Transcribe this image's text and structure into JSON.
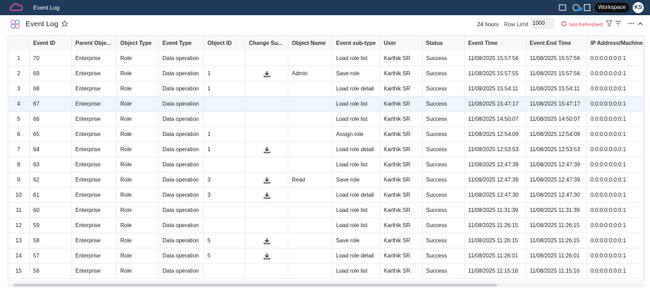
{
  "topbar": {
    "title": "Event Log",
    "workspace": "Workspace",
    "avatar": "KS"
  },
  "toolbar": {
    "title": "Event Log",
    "range": "24 hours",
    "row_limit_label": "Row Limit",
    "row_limit": "1000",
    "refresh_status": "Not Refreshed"
  },
  "table": {
    "columns": [
      "Event ID",
      "Parent Obje...",
      "Object Type",
      "Event Type",
      "Object ID",
      "Change Su...",
      "Object Name",
      "Event sub-type",
      "User",
      "Status",
      "Event Time",
      "Event End Time",
      "IP Address/Machine"
    ],
    "rows": [
      {
        "cells": [
          1,
          70,
          "Enterprise",
          "Role",
          "Data operation",
          null,
          null,
          null,
          "Load role list",
          "Karthik SR",
          "Success",
          "11/08/2025 15:57:56",
          "11/08/2025 15:57:56",
          "0:0:0:0:0:0:0:1"
        ]
      },
      {
        "cells": [
          2,
          69,
          "Enterprise",
          "Role",
          "Data operation",
          1,
          null,
          "Admin",
          "Save role",
          "Karthik SR",
          "Success",
          "11/08/2025 15:57:55",
          "11/08/2025 15:57:56",
          "0:0:0:0:0:0:0:1"
        ],
        "download": true
      },
      {
        "cells": [
          3,
          68,
          "Enterprise",
          "Role",
          "Data operation",
          1,
          null,
          null,
          "Load role detail",
          "Karthik SR",
          "Success",
          "11/08/2025 15:54:11",
          "11/08/2025 15:54:11",
          "0:0:0:0:0:0:0:1"
        ]
      },
      {
        "cells": [
          4,
          67,
          "Enterprise",
          "Role",
          "Data operation",
          null,
          null,
          null,
          "Load role list",
          "Karthik SR",
          "Success",
          "11/08/2025 15:47:17",
          "11/08/2025 15:47:17",
          "0:0:0:0:0:0:0:1"
        ],
        "selected": true
      },
      {
        "cells": [
          5,
          66,
          "Enterprise",
          "Role",
          "Data operation",
          null,
          null,
          null,
          "Load role list",
          "Karthik SR",
          "Success",
          "11/08/2025 14:50:07",
          "11/08/2025 14:50:07",
          "0:0:0:0:0:0:0:1"
        ]
      },
      {
        "cells": [
          6,
          65,
          "Enterprise",
          "Role",
          "Data operation",
          1,
          null,
          null,
          "Assign role",
          "Karthik SR",
          "Success",
          "11/08/2025 12:54:09",
          "11/08/2025 12:54:09",
          "0:0:0:0:0:0:0:1"
        ]
      },
      {
        "cells": [
          7,
          64,
          "Enterprise",
          "Role",
          "Data operation",
          1,
          null,
          null,
          "Load role detail",
          "Karthik SR",
          "Success",
          "11/08/2025 12:53:53",
          "11/08/2025 12:53:53",
          "0:0:0:0:0:0:0:1"
        ],
        "download": true
      },
      {
        "cells": [
          8,
          63,
          "Enterprise",
          "Role",
          "Data operation",
          null,
          null,
          null,
          "Load role list",
          "Karthik SR",
          "Success",
          "11/08/2025 12:47:39",
          "11/08/2025 12:47:39",
          "0:0:0:0:0:0:0:1"
        ]
      },
      {
        "cells": [
          9,
          62,
          "Enterprise",
          "Role",
          "Data operation",
          3,
          null,
          "Read",
          "Save role",
          "Karthik SR",
          "Success",
          "11/08/2025 12:47:39",
          "11/08/2025 12:47:39",
          "0:0:0:0:0:0:0:1"
        ],
        "download": true
      },
      {
        "cells": [
          10,
          61,
          "Enterprise",
          "Role",
          "Data operation",
          3,
          null,
          null,
          "Load role detail",
          "Karthik SR",
          "Success",
          "11/08/2025 12:47:30",
          "11/08/2025 12:47:30",
          "0:0:0:0:0:0:0:1"
        ],
        "download": true
      },
      {
        "cells": [
          11,
          60,
          "Enterprise",
          "Role",
          "Data operation",
          null,
          null,
          null,
          "Load role list",
          "Karthik SR",
          "Success",
          "11/08/2025 11:31:39",
          "11/08/2025 11:31:39",
          "0:0:0:0:0:0:0:1"
        ]
      },
      {
        "cells": [
          12,
          59,
          "Enterprise",
          "Role",
          "Data operation",
          null,
          null,
          null,
          "Load role list",
          "Karthik SR",
          "Success",
          "11/08/2025 11:26:15",
          "11/08/2025 11:26:15",
          "0:0:0:0:0:0:0:1"
        ]
      },
      {
        "cells": [
          13,
          58,
          "Enterprise",
          "Role",
          "Data operation",
          5,
          null,
          null,
          "Save role",
          "Karthik SR",
          "Success",
          "11/08/2025 11:26:15",
          "11/08/2025 11:26:15",
          "0:0:0:0:0:0:0:1"
        ],
        "download": true
      },
      {
        "cells": [
          14,
          57,
          "Enterprise",
          "Role",
          "Data operation",
          5,
          null,
          null,
          "Load role detail",
          "Karthik SR",
          "Success",
          "11/08/2025 11:26:01",
          "11/08/2025 11:26:01",
          "0:0:0:0:0:0:0:1"
        ],
        "download": true
      },
      {
        "cells": [
          15,
          56,
          "Enterprise",
          "Role",
          "Data operation",
          null,
          null,
          null,
          "Load role list",
          "Karthik SR",
          "Success",
          "11/08/2025 11:15:16",
          "11/08/2025 11:15:16",
          "0:0:0:0:0:0:0:1"
        ]
      }
    ]
  }
}
